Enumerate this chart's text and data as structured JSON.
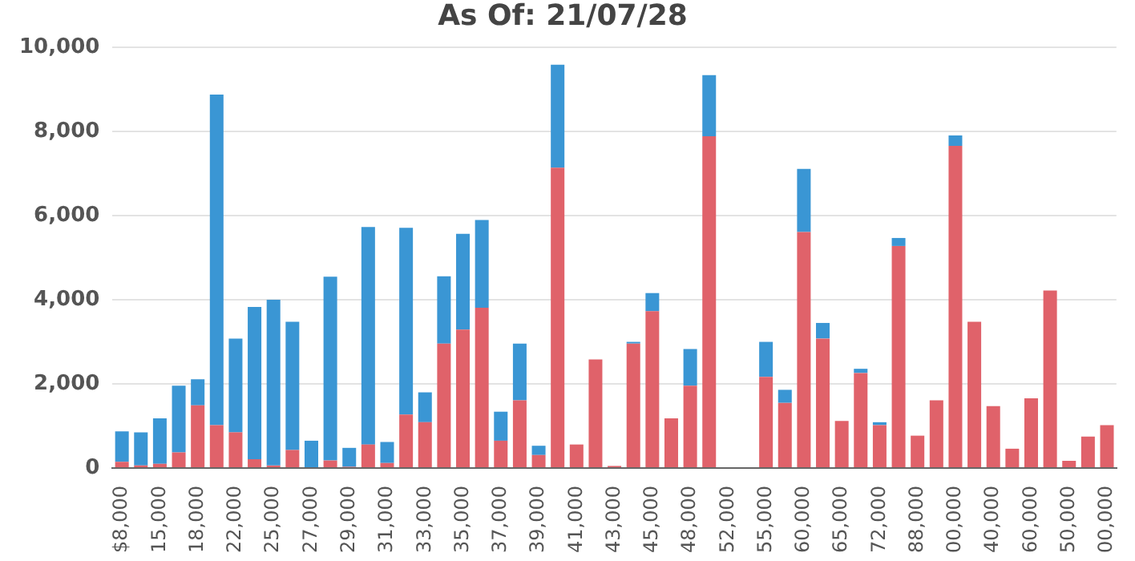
{
  "chart_data": {
    "type": "bar",
    "title": "As Of: 21/07/28",
    "stacked": true,
    "categories": [
      "$8,000",
      null,
      "15,000",
      null,
      "18,000",
      null,
      "22,000",
      null,
      "25,000",
      null,
      "27,000",
      null,
      "29,000",
      null,
      "31,000",
      null,
      "33,000",
      null,
      "35,000",
      null,
      "37,000",
      null,
      "39,000",
      null,
      "41,000",
      null,
      "43,000",
      null,
      "45,000",
      null,
      "48,000",
      null,
      "52,000",
      null,
      "55,000",
      null,
      "60,000",
      null,
      "65,000",
      null,
      "72,000",
      null,
      "88,000",
      null,
      "00,000",
      null,
      "40,000",
      null,
      "60,000",
      null,
      "50,000",
      null,
      "00,000"
    ],
    "series": [
      {
        "color": "#e0626a",
        "values": [
          150,
          60,
          100,
          370,
          1490,
          1020,
          850,
          210,
          60,
          430,
          0,
          180,
          30,
          560,
          120,
          1270,
          1090,
          2960,
          3290,
          3810,
          650,
          1610,
          310,
          7140,
          560,
          2580,
          50,
          2960,
          3730,
          1180,
          1960,
          7890,
          null,
          null,
          2170,
          1550,
          5610,
          3080,
          1120,
          2260,
          1020,
          5280,
          770,
          1610,
          7660,
          3480,
          1470,
          460,
          1660,
          4220,
          170,
          750,
          1020
        ]
      },
      {
        "color": "#3a96d4",
        "values": [
          720,
          790,
          1080,
          1590,
          620,
          7860,
          2230,
          3620,
          3940,
          3050,
          650,
          4370,
          450,
          5170,
          500,
          4440,
          710,
          1600,
          2280,
          2090,
          690,
          1350,
          220,
          2450,
          0,
          0,
          0,
          40,
          430,
          0,
          870,
          1450,
          null,
          null,
          830,
          310,
          1500,
          370,
          0,
          100,
          70,
          190,
          0,
          0,
          250,
          0,
          0,
          0,
          0,
          0,
          0,
          0,
          0
        ]
      }
    ],
    "ylim": [
      0,
      10000
    ],
    "yticks": [
      {
        "value": 0,
        "label": "0"
      },
      {
        "value": 2000,
        "label": "2,000"
      },
      {
        "value": 4000,
        "label": "4,000"
      },
      {
        "value": 6000,
        "label": "6,000"
      },
      {
        "value": 8000,
        "label": "8,000"
      },
      {
        "value": 10000,
        "label": "10,000"
      }
    ],
    "grid": "y"
  }
}
